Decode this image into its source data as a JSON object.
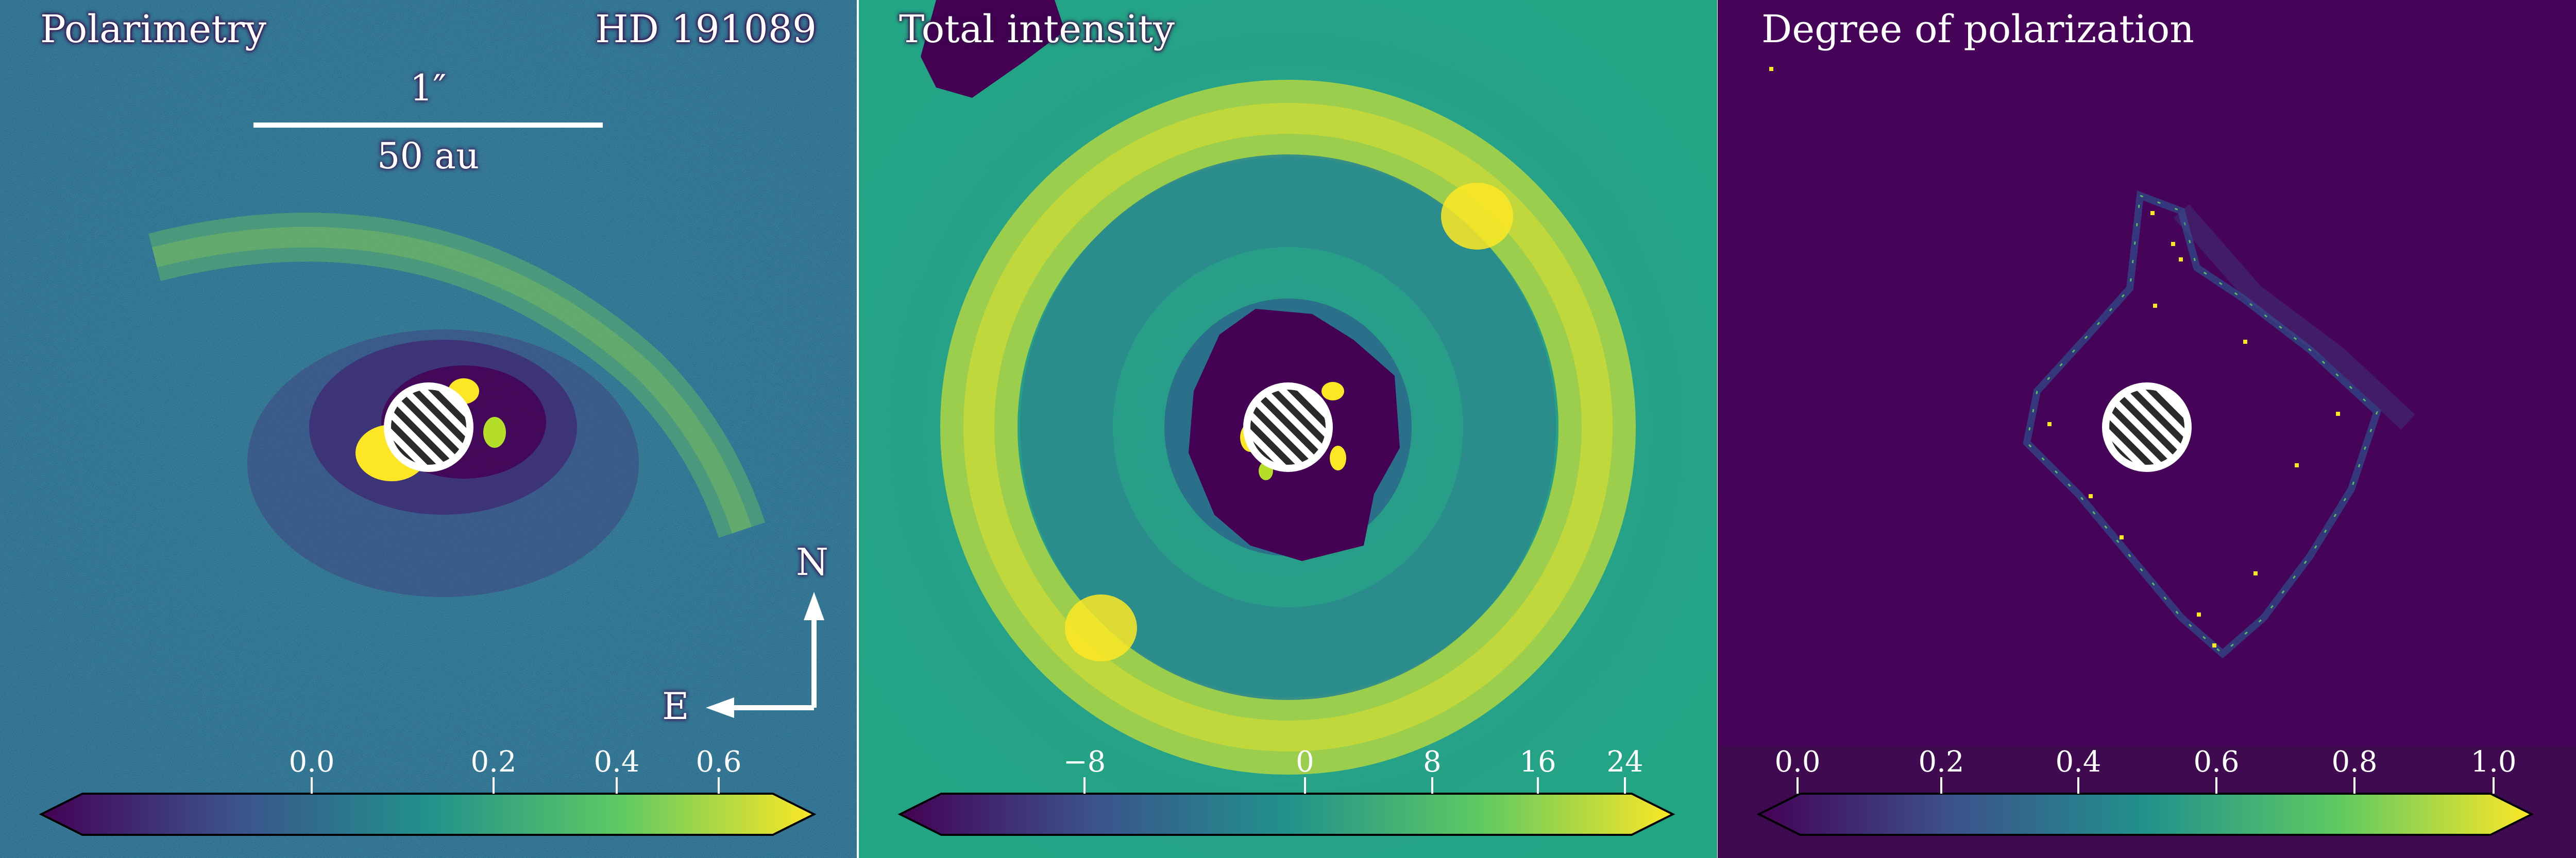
{
  "panels": [
    {
      "title": "Polarimetry",
      "target": "HD 191089",
      "scale_angular": "1″",
      "scale_physical": "50 au",
      "compass_north": "N",
      "compass_east": "E",
      "colormap": "viridis",
      "colorbar_ticks": [
        "0.0",
        "0.2",
        "0.4",
        "0.6"
      ]
    },
    {
      "title": "Total intensity",
      "colormap": "viridis",
      "colorbar_ticks": [
        "−8",
        "0",
        "8",
        "16",
        "24"
      ]
    },
    {
      "title": "Degree of polarization",
      "colormap": "viridis",
      "colorbar_ticks": [
        "0.0",
        "0.2",
        "0.4",
        "0.6",
        "0.8",
        "1.0"
      ]
    }
  ],
  "colors": {
    "viridis_dark": "#440154",
    "viridis_mid": "#21918c",
    "viridis_bright": "#fde725",
    "mask_fill": "#ffffff",
    "mask_hatch": "#2a2a2a"
  }
}
